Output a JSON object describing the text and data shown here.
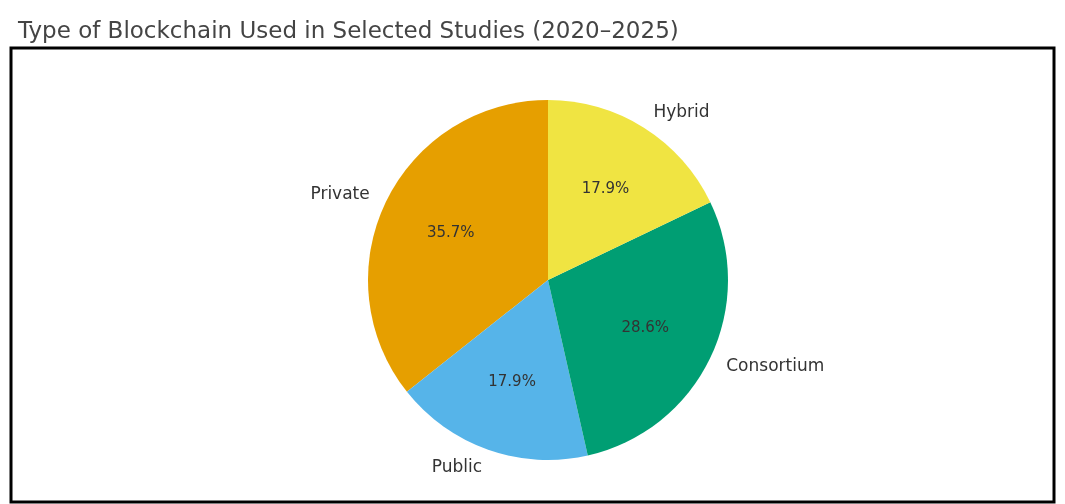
{
  "chart_data": {
    "type": "pie",
    "title": "Type of Blockchain Used in Selected Studies (2020–2025)",
    "categories": [
      "Private",
      "Public",
      "Consortium",
      "Hybrid"
    ],
    "values": [
      35.7,
      17.9,
      28.6,
      17.9
    ],
    "colors": [
      "#e69f00",
      "#56b4e9",
      "#009e73",
      "#f0e442"
    ],
    "value_labels": [
      "35.7%",
      "17.9%",
      "28.6%",
      "17.9%"
    ]
  }
}
